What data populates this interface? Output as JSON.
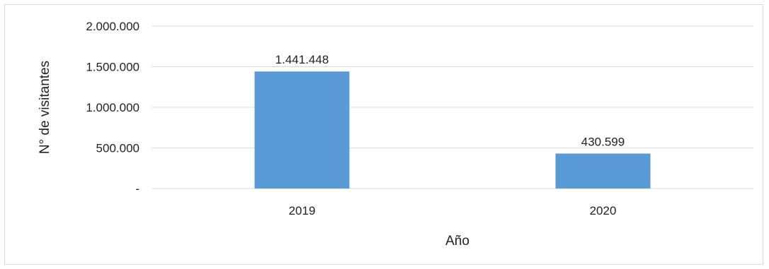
{
  "chart_data": {
    "type": "bar",
    "categories": [
      "2019",
      "2020"
    ],
    "values": [
      1441448,
      430599
    ],
    "value_labels": [
      "1.441.448",
      "430.599"
    ],
    "xlabel": "Año",
    "ylabel": "N° de visitantes",
    "ylim": [
      0,
      2000000
    ],
    "yticks": [
      0,
      500000,
      1000000,
      1500000,
      2000000
    ],
    "ytick_labels": [
      "-",
      "500.000",
      "1.000.000",
      "1.500.000",
      "2.000.000"
    ],
    "grid": true,
    "legend": "none",
    "colors": {
      "bar": "#5b9bd5",
      "grid": "#d9d9d9"
    }
  }
}
